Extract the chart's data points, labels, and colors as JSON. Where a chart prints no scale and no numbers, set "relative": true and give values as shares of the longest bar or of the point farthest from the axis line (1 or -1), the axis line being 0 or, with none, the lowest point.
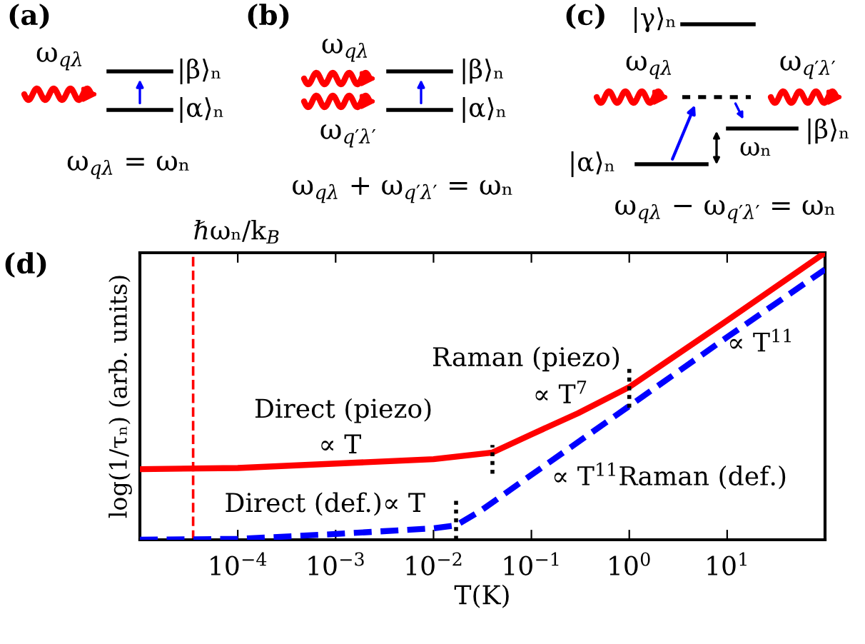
{
  "chart_data": {
    "type": "line",
    "relative": true,
    "log": "x",
    "grid": false,
    "legend": false,
    "tick_labels": "x",
    "xlabel": "T(K)",
    "ylabel": "log(1/τₙ) (arb. units)",
    "xlim": [
      1e-05,
      100
    ],
    "xticks": [
      {
        "value": 0.0001,
        "label": "10$^{−4}$"
      },
      {
        "value": 0.001,
        "label": "10$^{−3}$"
      },
      {
        "value": 0.01,
        "label": "10$^{−2}$"
      },
      {
        "value": 0.1,
        "label": "10$^{−1}$"
      },
      {
        "value": 1,
        "label": "10$^{0}$"
      },
      {
        "value": 10,
        "label": "10$^{1}$"
      }
    ],
    "series": [
      {
        "color": "#ff0000",
        "line_style": "solid",
        "x": [
          1e-05,
          0.0001,
          0.01,
          0.04,
          0.1,
          0.3,
          1,
          10,
          100
        ],
        "values": [
          0.246,
          0.25,
          0.281,
          0.304,
          0.367,
          0.441,
          0.532,
          0.764,
          1.0
        ]
      },
      {
        "color": "#0000ff",
        "line_style": "dashed",
        "x": [
          1e-05,
          0.0001,
          0.001,
          0.01,
          0.017,
          0.03,
          0.1,
          1,
          10,
          100
        ],
        "values": [
          0.0,
          0.003,
          0.02,
          0.04,
          0.05,
          0.1,
          0.226,
          0.466,
          0.706,
          0.942
        ]
      },
      {
        "color": "#000000",
        "line_style": "dotted",
        "x": [
          0.04,
          0.04
        ],
        "values": [
          0.23,
          0.33
        ]
      },
      {
        "color": "#000000",
        "line_style": "dotted",
        "x": [
          0.017,
          0.017
        ],
        "values": [
          0.0,
          0.15
        ]
      },
      {
        "color": "#000000",
        "line_style": "dotted",
        "x": [
          1,
          1
        ],
        "values": [
          0.46,
          0.6
        ]
      }
    ],
    "ref_lines": [
      {
        "axis": "x",
        "value": 3.5e-05,
        "label": "ℏωₙ/k$_{B}$",
        "color": "#ff0000",
        "line_style": "dashed"
      }
    ],
    "annotations": [
      "Direct (piezo)",
      "∝ T",
      "Raman (piezo)",
      "∝ T$^{7}$",
      "∝ T$^{11}$",
      "∝ T$^{11}$Raman (def.)",
      "Direct (def.)∝ T",
      "(d)",
      "(a)",
      "ω$_{qλ}$",
      "|β⟩ₙ",
      "|α⟩ₙ",
      "ω$_{qλ}$ = ωₙ",
      "(b)",
      "ω$_{qλ}$",
      "ω$_{q′λ′}$",
      "|β⟩ₙ",
      "|α⟩ₙ",
      "ω$_{qλ}$ + ω$_{q′λ′}$ = ωₙ",
      "(c)",
      "|γ⟩ₙ",
      "ω$_{qλ}$",
      "ω$_{q′λ′}$",
      "|β⟩ₙ",
      "ωₙ",
      "|α⟩ₙ",
      "ω$_{qλ}$ − ω$_{q′λ′}$ = ωₙ"
    ]
  }
}
